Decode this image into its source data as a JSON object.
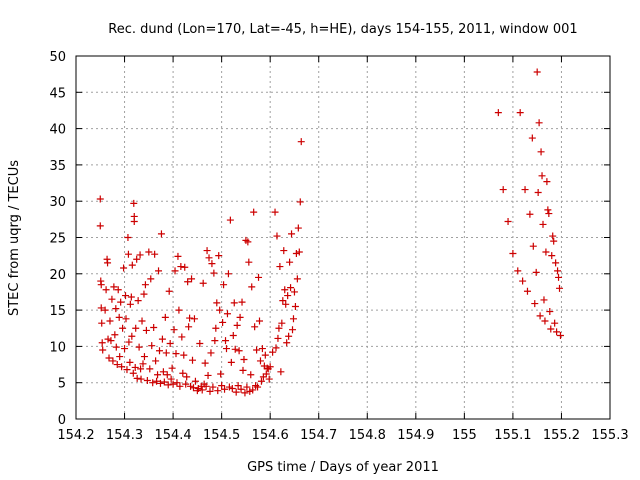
{
  "chart_data": {
    "type": "scatter",
    "title": "Rec. dund (Lon=170, Lat=-45, h=HE), days 154-155, 2011, window 001",
    "xlabel": "GPS time / Days of year 2011",
    "ylabel": "STEC from uqrg / TECUs",
    "xlim": [
      154.2,
      155.3
    ],
    "ylim": [
      0,
      50
    ],
    "xticks": [
      154.2,
      154.3,
      154.4,
      154.5,
      154.6,
      154.7,
      154.8,
      154.9,
      155.0,
      155.1,
      155.2,
      155.3
    ],
    "xtick_labels": [
      "154.2",
      "154.3",
      "154.4",
      "154.5",
      "154.6",
      "154.7",
      "154.8",
      "154.9",
      "155",
      "155.1",
      "155.2",
      "155.3"
    ],
    "yticks": [
      0,
      5,
      10,
      15,
      20,
      25,
      30,
      35,
      40,
      45,
      50
    ],
    "ytick_labels": [
      "0",
      "5",
      "10",
      "15",
      "20",
      "25",
      "30",
      "35",
      "40",
      "45",
      "50"
    ],
    "grid": true,
    "marker": "+",
    "color": "#cc0000",
    "series": [
      {
        "name": "STEC",
        "points": [
          [
            154.25,
            30.3
          ],
          [
            154.25,
            26.6
          ],
          [
            154.251,
            19.0
          ],
          [
            154.252,
            18.5
          ],
          [
            154.252,
            15.3
          ],
          [
            154.253,
            13.2
          ],
          [
            154.254,
            10.5
          ],
          [
            154.255,
            9.5
          ],
          [
            154.26,
            15.0
          ],
          [
            154.262,
            17.8
          ],
          [
            154.264,
            22.0
          ],
          [
            154.265,
            21.5
          ],
          [
            154.266,
            11.0
          ],
          [
            154.268,
            8.4
          ],
          [
            154.27,
            13.5
          ],
          [
            154.272,
            10.8
          ],
          [
            154.274,
            16.5
          ],
          [
            154.276,
            8.0
          ],
          [
            154.278,
            18.2
          ],
          [
            154.28,
            11.6
          ],
          [
            154.282,
            15.2
          ],
          [
            154.283,
            9.9
          ],
          [
            154.285,
            7.5
          ],
          [
            154.287,
            17.8
          ],
          [
            154.289,
            14.0
          ],
          [
            154.29,
            8.6
          ],
          [
            154.292,
            16.1
          ],
          [
            154.294,
            7.2
          ],
          [
            154.296,
            12.5
          ],
          [
            154.298,
            20.8
          ],
          [
            154.3,
            9.7
          ],
          [
            154.302,
            17.0
          ],
          [
            154.303,
            13.8
          ],
          [
            154.305,
            6.8
          ],
          [
            154.307,
            25.0
          ],
          [
            154.308,
            22.7
          ],
          [
            154.309,
            10.6
          ],
          [
            154.311,
            7.8
          ],
          [
            154.312,
            15.8
          ],
          [
            154.314,
            16.8
          ],
          [
            154.315,
            11.4
          ],
          [
            154.316,
            21.2
          ],
          [
            154.318,
            6.3
          ],
          [
            154.319,
            29.7
          ],
          [
            154.32,
            27.9
          ],
          [
            154.32,
            27.2
          ],
          [
            154.322,
            7.1
          ],
          [
            154.323,
            12.5
          ],
          [
            154.325,
            22.0
          ],
          [
            154.326,
            5.6
          ],
          [
            154.328,
            16.3
          ],
          [
            154.33,
            9.9
          ],
          [
            154.332,
            22.6
          ],
          [
            154.333,
            6.9
          ],
          [
            154.334,
            5.5
          ],
          [
            154.336,
            13.5
          ],
          [
            154.338,
            7.6
          ],
          [
            154.34,
            17.2
          ],
          [
            154.341,
            8.6
          ],
          [
            154.343,
            18.5
          ],
          [
            154.345,
            12.2
          ],
          [
            154.347,
            5.3
          ],
          [
            154.35,
            23.0
          ],
          [
            154.352,
            6.9
          ],
          [
            154.354,
            19.3
          ],
          [
            154.356,
            10.1
          ],
          [
            154.358,
            5.0
          ],
          [
            154.36,
            12.6
          ],
          [
            154.362,
            22.7
          ],
          [
            154.364,
            8.0
          ],
          [
            154.366,
            5.2
          ],
          [
            154.368,
            6.1
          ],
          [
            154.37,
            20.4
          ],
          [
            154.372,
            9.4
          ],
          [
            154.374,
            4.9
          ],
          [
            154.376,
            25.5
          ],
          [
            154.378,
            11.0
          ],
          [
            154.38,
            6.5
          ],
          [
            154.382,
            5.1
          ],
          [
            154.384,
            14.0
          ],
          [
            154.386,
            9.1
          ],
          [
            154.388,
            6.1
          ],
          [
            154.39,
            4.7
          ],
          [
            154.392,
            17.6
          ],
          [
            154.394,
            10.4
          ],
          [
            154.396,
            5.5
          ],
          [
            154.398,
            7.0
          ],
          [
            154.4,
            4.8
          ],
          [
            154.402,
            12.3
          ],
          [
            154.404,
            20.4
          ],
          [
            154.406,
            9.0
          ],
          [
            154.408,
            5.0
          ],
          [
            154.41,
            22.4
          ],
          [
            154.412,
            15.0
          ],
          [
            154.414,
            4.5
          ],
          [
            154.416,
            21.0
          ],
          [
            154.418,
            11.3
          ],
          [
            154.42,
            6.3
          ],
          [
            154.422,
            8.8
          ],
          [
            154.424,
            20.9
          ],
          [
            154.426,
            4.8
          ],
          [
            154.428,
            5.8
          ],
          [
            154.43,
            18.9
          ],
          [
            154.432,
            12.7
          ],
          [
            154.434,
            13.9
          ],
          [
            154.436,
            4.5
          ],
          [
            154.438,
            19.3
          ],
          [
            154.44,
            8.1
          ],
          [
            154.442,
            4.3
          ],
          [
            154.444,
            13.8
          ],
          [
            154.446,
            5.2
          ],
          [
            154.45,
            3.9
          ],
          [
            154.452,
            4.2
          ],
          [
            154.455,
            10.4
          ],
          [
            154.458,
            4.5
          ],
          [
            154.46,
            4.0
          ],
          [
            154.462,
            18.7
          ],
          [
            154.464,
            4.8
          ],
          [
            154.466,
            7.7
          ],
          [
            154.468,
            4.5
          ],
          [
            154.47,
            23.2
          ],
          [
            154.472,
            6.0
          ],
          [
            154.474,
            22.2
          ],
          [
            154.476,
            3.8
          ],
          [
            154.478,
            9.1
          ],
          [
            154.48,
            21.4
          ],
          [
            154.482,
            4.4
          ],
          [
            154.484,
            20.1
          ],
          [
            154.486,
            10.8
          ],
          [
            154.488,
            12.5
          ],
          [
            154.49,
            16.0
          ],
          [
            154.492,
            3.9
          ],
          [
            154.494,
            22.5
          ],
          [
            154.496,
            15.0
          ],
          [
            154.498,
            6.2
          ],
          [
            154.5,
            4.6
          ],
          [
            154.502,
            13.3
          ],
          [
            154.504,
            18.5
          ],
          [
            154.506,
            4.1
          ],
          [
            154.508,
            10.8
          ],
          [
            154.51,
            9.7
          ],
          [
            154.512,
            14.5
          ],
          [
            154.514,
            20.0
          ],
          [
            154.516,
            4.4
          ],
          [
            154.518,
            27.4
          ],
          [
            154.52,
            7.8
          ],
          [
            154.522,
            4.2
          ],
          [
            154.524,
            11.5
          ],
          [
            154.526,
            16.0
          ],
          [
            154.528,
            9.6
          ],
          [
            154.53,
            3.7
          ],
          [
            154.532,
            12.9
          ],
          [
            154.534,
            4.6
          ],
          [
            154.536,
            9.4
          ],
          [
            154.538,
            14.0
          ],
          [
            154.54,
            4.1
          ],
          [
            154.542,
            16.1
          ],
          [
            154.544,
            6.7
          ],
          [
            154.546,
            8.2
          ],
          [
            154.548,
            3.6
          ],
          [
            154.55,
            24.6
          ],
          [
            154.552,
            4.4
          ],
          [
            154.554,
            24.4
          ],
          [
            154.556,
            21.6
          ],
          [
            154.558,
            3.8
          ],
          [
            154.56,
            6.1
          ],
          [
            154.562,
            18.2
          ],
          [
            154.564,
            4.0
          ],
          [
            154.566,
            28.5
          ],
          [
            154.568,
            12.7
          ],
          [
            154.57,
            4.6
          ],
          [
            154.572,
            9.5
          ],
          [
            154.574,
            4.4
          ],
          [
            154.576,
            19.5
          ],
          [
            154.578,
            13.5
          ],
          [
            154.58,
            8.0
          ],
          [
            154.582,
            5.2
          ],
          [
            154.584,
            9.7
          ],
          [
            154.586,
            5.8
          ],
          [
            154.588,
            7.3
          ],
          [
            154.59,
            8.8
          ],
          [
            154.592,
            6.2
          ],
          [
            154.594,
            7.0
          ],
          [
            154.596,
            6.9
          ],
          [
            154.598,
            5.5
          ],
          [
            154.6,
            7.2
          ],
          [
            154.605,
            9.2
          ],
          [
            154.61,
            28.5
          ],
          [
            154.612,
            9.8
          ],
          [
            154.614,
            25.2
          ],
          [
            154.616,
            11.1
          ],
          [
            154.618,
            12.5
          ],
          [
            154.62,
            21.0
          ],
          [
            154.622,
            6.5
          ],
          [
            154.624,
            13.2
          ],
          [
            154.626,
            16.3
          ],
          [
            154.628,
            23.2
          ],
          [
            154.63,
            17.8
          ],
          [
            154.632,
            15.8
          ],
          [
            154.634,
            10.5
          ],
          [
            154.636,
            17.0
          ],
          [
            154.638,
            11.4
          ],
          [
            154.64,
            21.6
          ],
          [
            154.642,
            18.1
          ],
          [
            154.644,
            25.5
          ],
          [
            154.646,
            12.3
          ],
          [
            154.648,
            13.8
          ],
          [
            154.65,
            17.5
          ],
          [
            154.652,
            15.5
          ],
          [
            154.654,
            22.8
          ],
          [
            154.656,
            19.3
          ],
          [
            154.658,
            26.3
          ],
          [
            154.66,
            23.0
          ],
          [
            154.662,
            29.9
          ],
          [
            154.664,
            38.2
          ],
          [
            155.07,
            42.2
          ],
          [
            155.08,
            31.6
          ],
          [
            155.09,
            27.2
          ],
          [
            155.1,
            22.8
          ],
          [
            155.11,
            20.4
          ],
          [
            155.115,
            42.2
          ],
          [
            155.12,
            19.0
          ],
          [
            155.125,
            31.6
          ],
          [
            155.13,
            17.6
          ],
          [
            155.135,
            28.2
          ],
          [
            155.14,
            38.7
          ],
          [
            155.142,
            23.8
          ],
          [
            155.145,
            15.9
          ],
          [
            155.148,
            20.2
          ],
          [
            155.15,
            47.8
          ],
          [
            155.152,
            31.2
          ],
          [
            155.154,
            40.8
          ],
          [
            155.156,
            14.2
          ],
          [
            155.158,
            36.8
          ],
          [
            155.16,
            33.5
          ],
          [
            155.162,
            26.8
          ],
          [
            155.164,
            16.4
          ],
          [
            155.166,
            13.5
          ],
          [
            155.168,
            23.0
          ],
          [
            155.17,
            32.7
          ],
          [
            155.172,
            28.8
          ],
          [
            155.174,
            28.3
          ],
          [
            155.176,
            14.8
          ],
          [
            155.178,
            12.4
          ],
          [
            155.18,
            22.5
          ],
          [
            155.182,
            25.2
          ],
          [
            155.184,
            24.5
          ],
          [
            155.186,
            13.2
          ],
          [
            155.188,
            21.5
          ],
          [
            155.19,
            12.0
          ],
          [
            155.192,
            20.4
          ],
          [
            155.194,
            19.5
          ],
          [
            155.196,
            18.0
          ],
          [
            155.198,
            11.5
          ]
        ]
      }
    ]
  }
}
